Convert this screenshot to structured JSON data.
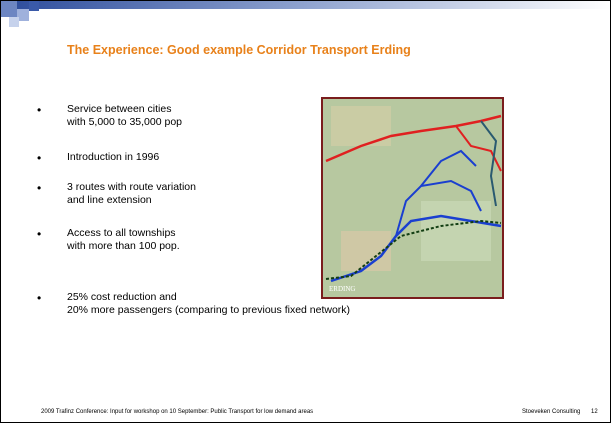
{
  "header": {
    "title": "The Experience: Good example Corridor Transport Erding"
  },
  "bullets": [
    {
      "lines": [
        "Service between cities",
        "with 5,000 to 35,000 pop"
      ]
    },
    {
      "lines": [
        "Introduction in 1996"
      ]
    },
    {
      "lines": [
        "3 routes with route variation",
        "and line extension"
      ]
    },
    {
      "lines": [
        "Access to all townships",
        "with more than 100 pop."
      ]
    },
    {
      "lines": [
        "25% cost reduction and",
        "20% more passengers (comparing to previous fixed network)"
      ]
    }
  ],
  "map": {
    "label": "ERDING"
  },
  "footer": {
    "left": "2009 Trafinz Conference: Input for workshop on 10 September: Public Transport for low demand areas",
    "right": "Stoeveken Consulting",
    "page": "12"
  }
}
